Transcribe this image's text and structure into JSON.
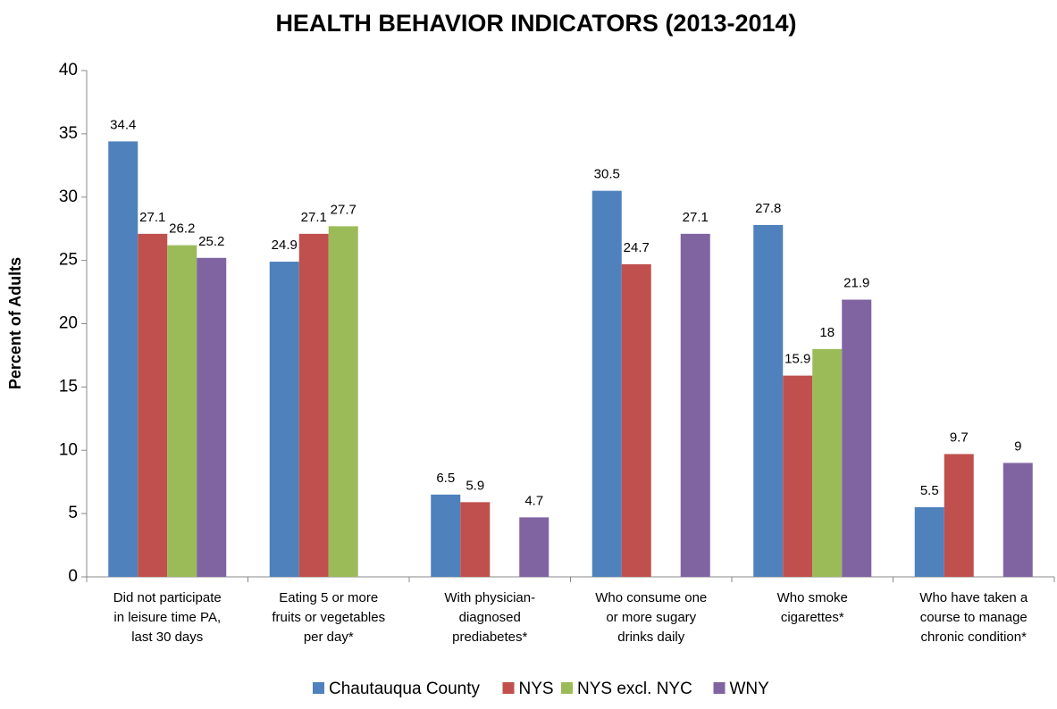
{
  "chart_data": {
    "type": "bar",
    "title": "HEALTH BEHAVIOR INDICATORS (2013-2014)",
    "y_label": "Percent of Adults",
    "categories": [
      [
        "Did not participate",
        "in leisure time PA,",
        "last 30 days"
      ],
      [
        "Eating 5 or more",
        "fruits or vegetables",
        "per day*"
      ],
      [
        "With physician-",
        "diagnosed",
        "prediabetes*"
      ],
      [
        "Who consume one",
        "or more sugary",
        "drinks daily"
      ],
      [
        "Who smoke",
        "cigarettes*"
      ],
      [
        "Who have taken a",
        "course to manage",
        "chronic condition*"
      ]
    ],
    "series": [
      {
        "name": "Chautauqua County",
        "color": "#4f81bd",
        "values": [
          34.4,
          24.9,
          6.5,
          30.5,
          27.8,
          5.5
        ]
      },
      {
        "name": "NYS",
        "color": "#c0504d",
        "values": [
          27.1,
          27.1,
          5.9,
          24.7,
          15.9,
          9.7
        ]
      },
      {
        "name": "NYS excl. NYC",
        "color": "#9bbb59",
        "values": [
          26.2,
          27.7,
          null,
          null,
          18,
          null
        ]
      },
      {
        "name": "WNY",
        "color": "#8064a2",
        "values": [
          25.2,
          null,
          4.7,
          27.1,
          21.9,
          9
        ]
      }
    ],
    "ylim": [
      0,
      40
    ],
    "yticks": [
      0,
      5,
      10,
      15,
      20,
      25,
      30,
      35,
      40
    ],
    "grid": false,
    "legend": "bottom"
  }
}
